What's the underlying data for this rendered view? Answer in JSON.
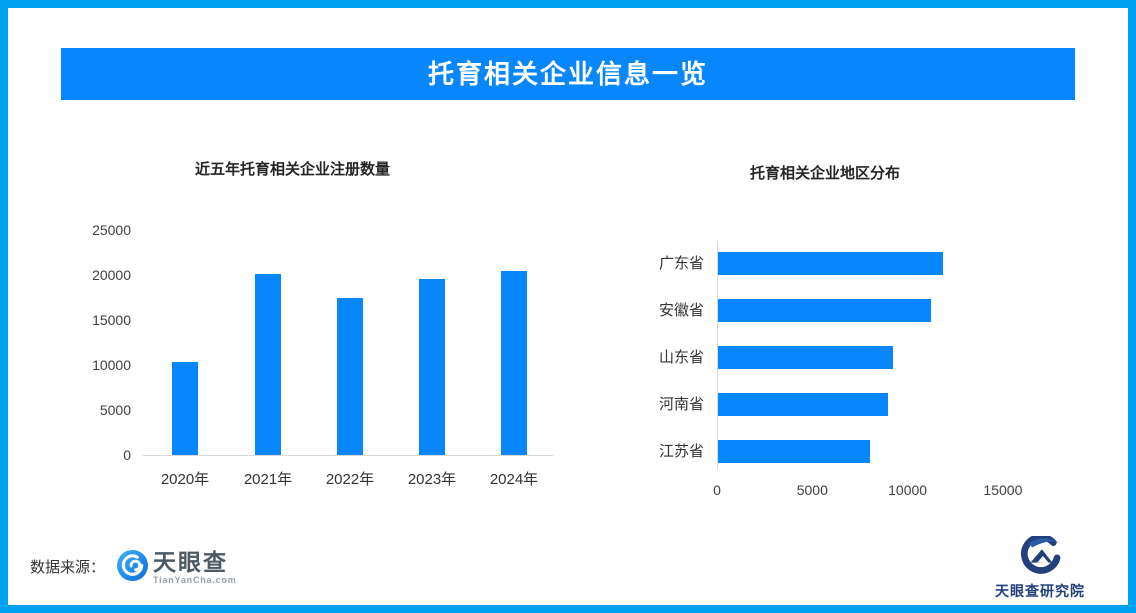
{
  "banner": {
    "title": "托育相关企业信息一览",
    "bg": "#0886fb",
    "text_color": "#ffffff"
  },
  "colors": {
    "page_border": "#00a0f0",
    "bar": "#0886fb",
    "axis_line": "#d9d9d9",
    "tick_text": "#404040",
    "chart_title_text": "#262626"
  },
  "footer": {
    "source_label": "数据来源：",
    "tianyancha": {
      "name": "天眼查",
      "domain": "TianYanCha.com"
    },
    "institute_name": "天眼查研究院"
  },
  "icons": {
    "tianyancha": "tianyancha-eye-icon",
    "institute": "institute-swoosh-icon"
  },
  "chart_data": [
    {
      "type": "bar",
      "orientation": "vertical",
      "title": "近五年托育相关企业注册数量",
      "categories": [
        "2020年",
        "2021年",
        "2022年",
        "2023年",
        "2024年"
      ],
      "values": [
        10300,
        20100,
        17400,
        19600,
        20400
      ],
      "xlabel": "",
      "ylabel": "",
      "ylim": [
        0,
        25000
      ],
      "yticks": [
        0,
        5000,
        10000,
        15000,
        20000,
        25000
      ],
      "bar_color": "#0886fb",
      "grid": false,
      "legend": null
    },
    {
      "type": "bar",
      "orientation": "horizontal",
      "title": "托育相关企业地区分布",
      "categories": [
        "广东省",
        "安徽省",
        "山东省",
        "河南省",
        "江苏省"
      ],
      "values": [
        11800,
        11200,
        9200,
        8900,
        8000
      ],
      "xlabel": "",
      "ylabel": "",
      "xlim": [
        0,
        17500
      ],
      "xticks": [
        0,
        5000,
        10000,
        15000
      ],
      "bar_color": "#0886fb",
      "grid": false,
      "legend": null
    }
  ]
}
